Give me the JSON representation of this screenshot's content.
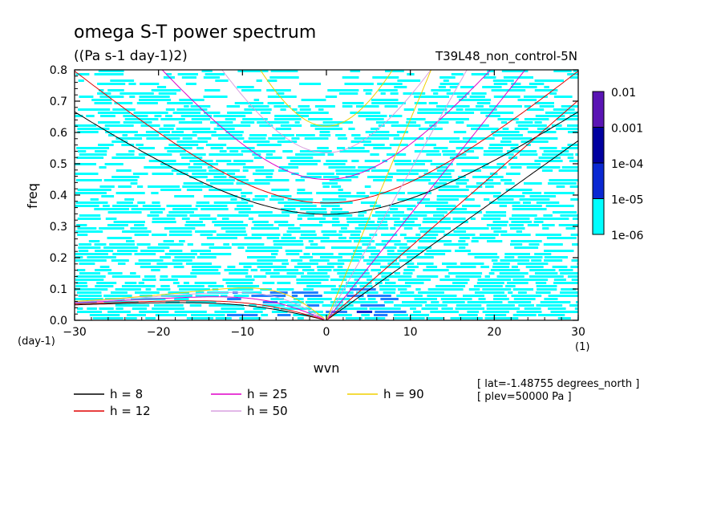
{
  "chart_data": {
    "type": "heatmap",
    "title": "omega S-T power spectrum",
    "subtitle": "((Pa s-1 day-1)2)",
    "run_label": "T39L48_non_control-5N",
    "xlabel": "wvn",
    "ylabel": "freq",
    "x_unit": "(1)",
    "y_unit": "(day-1)",
    "xlim": [
      -30,
      30
    ],
    "ylim": [
      0,
      0.8
    ],
    "x_ticks": [
      -30,
      -20,
      -10,
      0,
      10,
      20,
      30
    ],
    "x_tick_labels": [
      "-30",
      "-20",
      "-10",
      "0",
      "10",
      "20",
      "30"
    ],
    "y_ticks": [
      0,
      0.1,
      0.2,
      0.3,
      0.4,
      0.5,
      0.6,
      0.7,
      0.8
    ],
    "y_tick_labels": [
      "0.0",
      "0.1",
      "0.2",
      "0.3",
      "0.4",
      "0.5",
      "0.6",
      "0.7",
      "0.8"
    ],
    "colorbar": {
      "labels": [
        "0.01",
        "0.001",
        "1e-04",
        "1e-05",
        "1e-06"
      ],
      "levels": [
        1e-06,
        1e-05,
        0.0001,
        0.001,
        0.01
      ],
      "colors": [
        "#00ffff",
        "#1e7fff",
        "#0a28d2",
        "#0000a0",
        "#5a14b4"
      ]
    },
    "dominant_levels": {
      "background": "1e-06 to 1e-05 (cyan) over most of the domain",
      "enhanced": "1e-05 to 1e-04 (blue) near wvn 0 to 5, freq 0 to 0.1"
    },
    "curves_equivalent_depth": [
      {
        "name": "h =  8",
        "h": 8,
        "color": "#000000"
      },
      {
        "name": "h = 12",
        "h": 12,
        "color": "#e00000"
      },
      {
        "name": "h = 25",
        "h": 25,
        "color": "#e000c8"
      },
      {
        "name": "h = 50",
        "h": 50,
        "color": "#d8a0e0"
      },
      {
        "name": "h = 90",
        "h": 90,
        "color": "#f0d000"
      }
    ],
    "grid": false,
    "legend_position": "bottom-left"
  },
  "info": {
    "lat": "[ lat=-1.48755 degrees_north ]",
    "plev": "[ plev=50000 Pa ]"
  }
}
